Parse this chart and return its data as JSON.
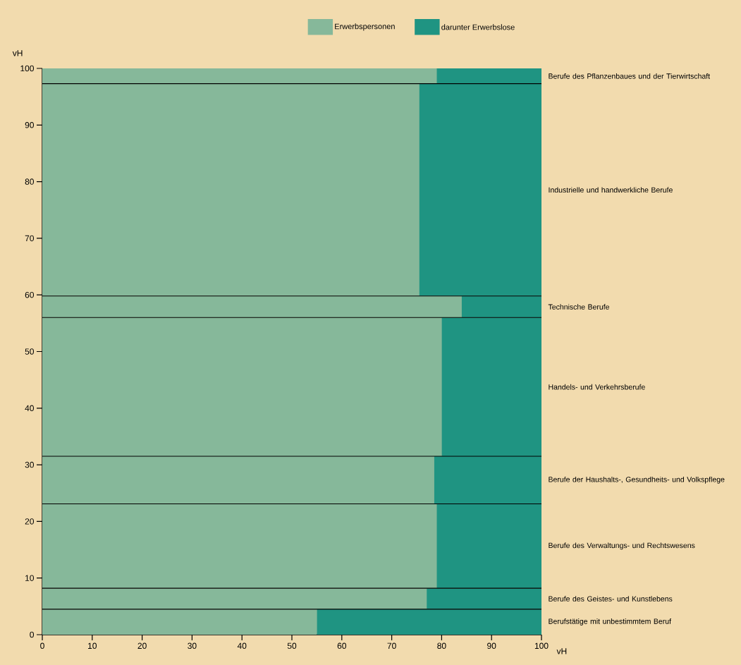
{
  "chart_data": {
    "type": "bar",
    "orientation": "horizontal",
    "stacked": true,
    "x": [
      98.65,
      78.55,
      57.9,
      43.75,
      27.3,
      15.65,
      6.35,
      2.25
    ],
    "series": [
      {
        "name": "Erwerbspersonen",
        "color": "#86b89a",
        "values": [
          79,
          75.5,
          84,
          80,
          78.5,
          79,
          77,
          55
        ]
      },
      {
        "name": "darunter Erwerbslose",
        "color": "#1f9482",
        "values": [
          21,
          24.5,
          16,
          20,
          21.5,
          21,
          23,
          45
        ]
      }
    ],
    "xlim": [
      0,
      100
    ],
    "xticks": [
      0,
      10,
      20,
      30,
      40,
      50,
      60,
      70,
      80,
      90,
      100
    ],
    "ylim": [
      0,
      100
    ],
    "yticks": [
      0,
      10,
      20,
      30,
      40,
      50,
      60,
      70,
      80,
      90,
      100
    ],
    "xlabel": "vH",
    "ylabel": "vH",
    "annotations": [
      "Berufe des Pflanzenbaues und der Tierwirtschaft",
      "Industrielle und handwerkliche Berufe",
      "Technische Berufe",
      "Handels- und Verkehrsberufe",
      "Berufe der Haushalts-, Gesundheits- und Volkspflege",
      "Berufe des Verwaltungs- und Rechtswesens",
      "Berufe des Geistes- und Kunstlebens",
      "Berufstätige mit unbestimmtem Beruf"
    ],
    "ref_lines": [
      {
        "axis": "y",
        "value": 97.3
      },
      {
        "axis": "y",
        "value": 59.8
      },
      {
        "axis": "y",
        "value": 56.0
      },
      {
        "axis": "y",
        "value": 31.5
      },
      {
        "axis": "y",
        "value": 23.1
      },
      {
        "axis": "y",
        "value": 8.2
      },
      {
        "axis": "y",
        "value": 4.5
      }
    ],
    "legend": "top"
  }
}
